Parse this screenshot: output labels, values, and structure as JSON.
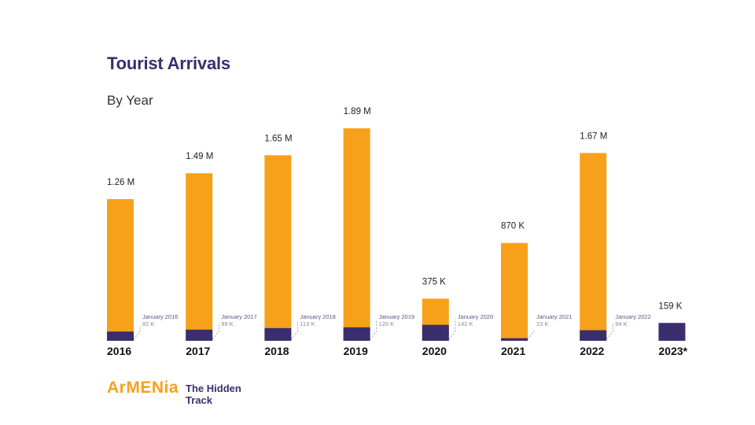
{
  "chart_data": {
    "type": "bar",
    "title": "Tourist Arrivals",
    "subtitle": "By Year",
    "categories": [
      "2016",
      "2017",
      "2018",
      "2019",
      "2020",
      "2021",
      "2022",
      "2023*"
    ],
    "series": [
      {
        "values": [
          1260000,
          1490000,
          1650000,
          1890000,
          375000,
          870000,
          1670000,
          159000
        ],
        "labels": [
          "1.26 M",
          "1.49 M",
          "1.65 M",
          "1.89 M",
          "375 K",
          "870 K",
          "1.67 M",
          "159 K"
        ],
        "color": "#f7a11a"
      },
      {
        "values": [
          82000,
          99000,
          113000,
          120000,
          142000,
          23000,
          94000,
          159000
        ],
        "month_labels": [
          "January 2016",
          "January 2017",
          "January 2018",
          "January 2019",
          "January 2020",
          "January 2021",
          "January 2022",
          ""
        ],
        "value_labels": [
          "82 K",
          "99 K",
          "113 K",
          "120 K",
          "142 K",
          "23 K",
          "94 K",
          ""
        ],
        "color": "#3b2e6e"
      }
    ],
    "ylim": [
      0,
      1890000
    ],
    "grid": false,
    "legend": "none"
  },
  "branding": {
    "logo_word": "ArMENia",
    "tagline": "The Hidden Track"
  }
}
